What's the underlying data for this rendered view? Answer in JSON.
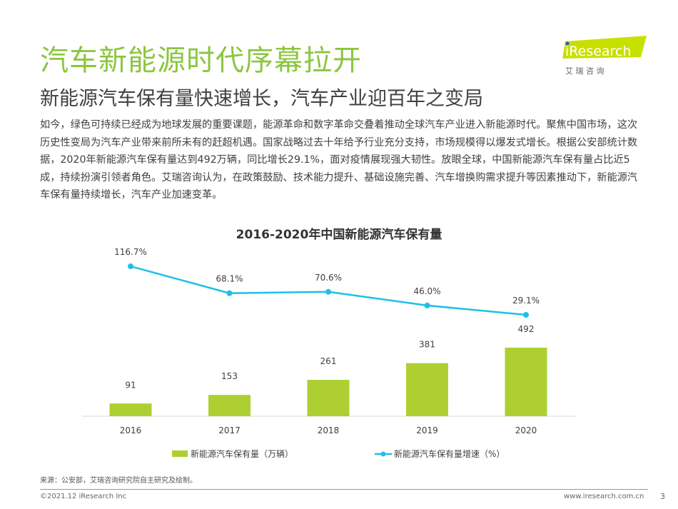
{
  "header": {
    "title": "汽车新能源时代序幕拉开",
    "subtitle": "新能源汽车保有量快速增长，汽车产业迎百年之变局",
    "logo_text": "iResearch",
    "logo_cn": "艾 瑞 咨 询"
  },
  "body_text": "如今，绿色可持续已经成为地球发展的重要课题，能源革命和数字革命交叠着推动全球汽车产业进入新能源时代。聚焦中国市场，这次历史性变局为汽车产业带来前所未有的赶超机遇。国家战略过去十年给予行业充分支持，市场规模得以爆发式增长。根据公安部统计数据，2020年新能源汽车保有量达到492万辆，同比增长29.1%，面对疫情展现强大韧性。放眼全球，中国新能源汽车保有量占比近5成，持续扮演引领者角色。艾瑞咨询认为，在政策鼓励、技术能力提升、基础设施完善、汽车增换购需求提升等因素推动下，新能源汽车保有量持续增长，汽车产业加速变革。",
  "chart_data": {
    "type": "bar+line",
    "title": "2016-2020年中国新能源汽车保有量",
    "categories": [
      "2016",
      "2017",
      "2018",
      "2019",
      "2020"
    ],
    "series": [
      {
        "name": "新能源汽车保有量（万辆）",
        "type": "bar",
        "values": [
          91,
          153,
          261,
          381,
          492
        ],
        "labels": [
          "91",
          "153",
          "261",
          "381",
          "492"
        ],
        "color": "#aecf32"
      },
      {
        "name": "新能源汽车保有量增速（%）",
        "type": "line",
        "values": [
          116.7,
          68.1,
          70.6,
          46.0,
          29.1
        ],
        "labels": [
          "116.7%",
          "68.1%",
          "70.6%",
          "46.0%",
          "29.1%"
        ],
        "color": "#1ec0e8"
      }
    ],
    "legend": "bottom",
    "grid": false
  },
  "footer": {
    "source": "来源：公安部，艾瑞咨询研究院自主研究及绘制。",
    "copyright": "©2021.12 iResearch Inc",
    "website": "www.iresearch.com.cn",
    "page": "3"
  },
  "colors": {
    "accent": "#8cc63f"
  }
}
